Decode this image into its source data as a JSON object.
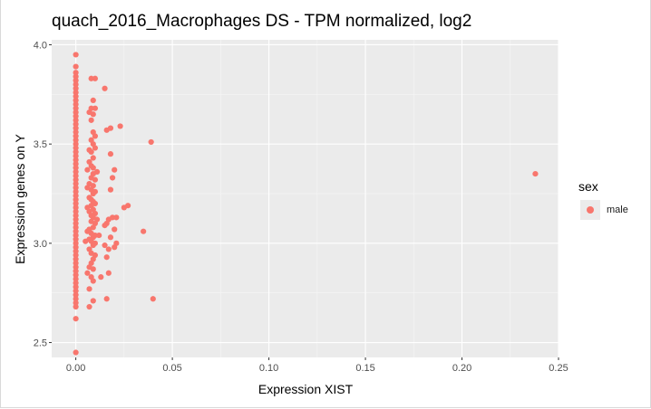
{
  "chart_data": {
    "type": "scatter",
    "title": "quach_2016_Macrophages DS - TPM normalized, log2",
    "xlabel": "Expression XIST",
    "ylabel": "Expression genes on Y",
    "xlim": [
      -0.0125,
      0.25
    ],
    "ylim": [
      2.425,
      4.025
    ],
    "x_ticks": [
      "0.00",
      "0.05",
      "0.10",
      "0.15",
      "0.20",
      "0.25"
    ],
    "y_ticks": [
      "2.5",
      "3.0",
      "3.5",
      "4.0"
    ],
    "grid": true,
    "legend": {
      "title": "sex",
      "position": "right",
      "entries": [
        "male"
      ]
    },
    "series": [
      {
        "name": "male",
        "color": "#f8766d",
        "points": [
          [
            0.0,
            3.95
          ],
          [
            0.0,
            3.89
          ],
          [
            0.0,
            3.86
          ],
          [
            0.0,
            3.84
          ],
          [
            0.0,
            3.82
          ],
          [
            0.0,
            3.8
          ],
          [
            0.0,
            3.78
          ],
          [
            0.0,
            3.76
          ],
          [
            0.0,
            3.74
          ],
          [
            0.0,
            3.72
          ],
          [
            0.0,
            3.7
          ],
          [
            0.0,
            3.68
          ],
          [
            0.0,
            3.66
          ],
          [
            0.0,
            3.64
          ],
          [
            0.0,
            3.62
          ],
          [
            0.0,
            3.6
          ],
          [
            0.0,
            3.58
          ],
          [
            0.0,
            3.56
          ],
          [
            0.0,
            3.54
          ],
          [
            0.0,
            3.52
          ],
          [
            0.0,
            3.5
          ],
          [
            0.0,
            3.48
          ],
          [
            0.0,
            3.46
          ],
          [
            0.0,
            3.44
          ],
          [
            0.0,
            3.42
          ],
          [
            0.0,
            3.4
          ],
          [
            0.0,
            3.38
          ],
          [
            0.0,
            3.36
          ],
          [
            0.0,
            3.34
          ],
          [
            0.0,
            3.32
          ],
          [
            0.0,
            3.3
          ],
          [
            0.0,
            3.28
          ],
          [
            0.0,
            3.26
          ],
          [
            0.0,
            3.24
          ],
          [
            0.0,
            3.22
          ],
          [
            0.0,
            3.2
          ],
          [
            0.0,
            3.18
          ],
          [
            0.0,
            3.16
          ],
          [
            0.0,
            3.14
          ],
          [
            0.0,
            3.12
          ],
          [
            0.0,
            3.1
          ],
          [
            0.0,
            3.08
          ],
          [
            0.0,
            3.06
          ],
          [
            0.0,
            3.04
          ],
          [
            0.0,
            3.02
          ],
          [
            0.0,
            3.0
          ],
          [
            0.0,
            2.98
          ],
          [
            0.0,
            2.96
          ],
          [
            0.0,
            2.94
          ],
          [
            0.0,
            2.92
          ],
          [
            0.0,
            2.9
          ],
          [
            0.0,
            2.88
          ],
          [
            0.0,
            2.86
          ],
          [
            0.0,
            2.84
          ],
          [
            0.0,
            2.82
          ],
          [
            0.0,
            2.8
          ],
          [
            0.0,
            2.78
          ],
          [
            0.0,
            2.76
          ],
          [
            0.0,
            2.74
          ],
          [
            0.0,
            2.72
          ],
          [
            0.0,
            2.7
          ],
          [
            0.0,
            2.68
          ],
          [
            0.0,
            2.62
          ],
          [
            0.0,
            2.45
          ],
          [
            0.008,
            3.83
          ],
          [
            0.01,
            3.83
          ],
          [
            0.015,
            3.78
          ],
          [
            0.009,
            3.72
          ],
          [
            0.008,
            3.68
          ],
          [
            0.01,
            3.68
          ],
          [
            0.007,
            3.66
          ],
          [
            0.009,
            3.65
          ],
          [
            0.008,
            3.62
          ],
          [
            0.018,
            3.58
          ],
          [
            0.023,
            3.59
          ],
          [
            0.016,
            3.57
          ],
          [
            0.009,
            3.56
          ],
          [
            0.01,
            3.54
          ],
          [
            0.008,
            3.52
          ],
          [
            0.009,
            3.5
          ],
          [
            0.039,
            3.51
          ],
          [
            0.01,
            3.48
          ],
          [
            0.007,
            3.47
          ],
          [
            0.008,
            3.46
          ],
          [
            0.018,
            3.45
          ],
          [
            0.009,
            3.43
          ],
          [
            0.007,
            3.41
          ],
          [
            0.008,
            3.39
          ],
          [
            0.009,
            3.38
          ],
          [
            0.006,
            3.37
          ],
          [
            0.011,
            3.36
          ],
          [
            0.02,
            3.37
          ],
          [
            0.009,
            3.35
          ],
          [
            0.008,
            3.33
          ],
          [
            0.019,
            3.33
          ],
          [
            0.01,
            3.32
          ],
          [
            0.007,
            3.3
          ],
          [
            0.009,
            3.29
          ],
          [
            0.006,
            3.28
          ],
          [
            0.008,
            3.27
          ],
          [
            0.018,
            3.27
          ],
          [
            0.01,
            3.26
          ],
          [
            0.009,
            3.25
          ],
          [
            0.007,
            3.23
          ],
          [
            0.008,
            3.22
          ],
          [
            0.009,
            3.21
          ],
          [
            0.01,
            3.2
          ],
          [
            0.008,
            3.19
          ],
          [
            0.025,
            3.18
          ],
          [
            0.027,
            3.19
          ],
          [
            0.006,
            3.18
          ],
          [
            0.009,
            3.17
          ],
          [
            0.007,
            3.16
          ],
          [
            0.01,
            3.15
          ],
          [
            0.008,
            3.14
          ],
          [
            0.009,
            3.13
          ],
          [
            0.011,
            3.12
          ],
          [
            0.017,
            3.12
          ],
          [
            0.019,
            3.13
          ],
          [
            0.021,
            3.13
          ],
          [
            0.008,
            3.11
          ],
          [
            0.01,
            3.1
          ],
          [
            0.016,
            3.1
          ],
          [
            0.015,
            3.09
          ],
          [
            0.009,
            3.08
          ],
          [
            0.007,
            3.07
          ],
          [
            0.02,
            3.07
          ],
          [
            0.035,
            3.06
          ],
          [
            0.006,
            3.06
          ],
          [
            0.008,
            3.05
          ],
          [
            0.01,
            3.04
          ],
          [
            0.012,
            3.04
          ],
          [
            0.009,
            3.03
          ],
          [
            0.018,
            3.03
          ],
          [
            0.007,
            3.02
          ],
          [
            0.008,
            3.01
          ],
          [
            0.005,
            3.01
          ],
          [
            0.01,
            3.0
          ],
          [
            0.021,
            3.0
          ],
          [
            0.009,
            2.99
          ],
          [
            0.015,
            2.99
          ],
          [
            0.02,
            2.98
          ],
          [
            0.017,
            2.97
          ],
          [
            0.007,
            2.97
          ],
          [
            0.008,
            2.95
          ],
          [
            0.01,
            2.94
          ],
          [
            0.016,
            2.93
          ],
          [
            0.009,
            2.92
          ],
          [
            0.008,
            2.9
          ],
          [
            0.007,
            2.88
          ],
          [
            0.009,
            2.87
          ],
          [
            0.006,
            2.85
          ],
          [
            0.017,
            2.85
          ],
          [
            0.008,
            2.83
          ],
          [
            0.013,
            2.83
          ],
          [
            0.009,
            2.81
          ],
          [
            0.007,
            2.77
          ],
          [
            0.016,
            2.72
          ],
          [
            0.04,
            2.72
          ],
          [
            0.009,
            2.71
          ],
          [
            0.007,
            2.68
          ],
          [
            0.238,
            3.35
          ]
        ]
      }
    ]
  }
}
